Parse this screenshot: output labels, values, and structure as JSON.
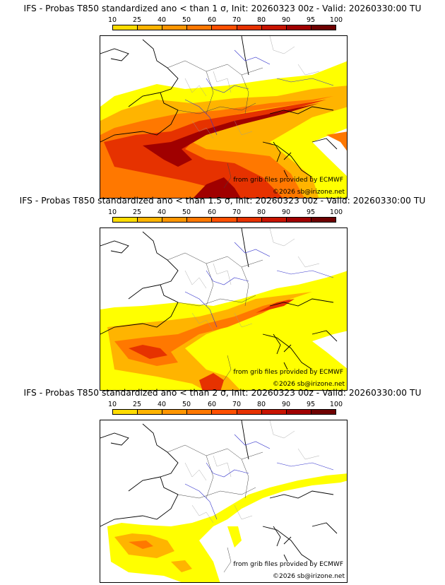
{
  "legend": {
    "ticks": [
      "10",
      "25",
      "40",
      "50",
      "60",
      "70",
      "80",
      "90",
      "95",
      "100"
    ],
    "colors": [
      "#ffff00",
      "#ffdc00",
      "#ffb400",
      "#ff9600",
      "#ff7800",
      "#ff5000",
      "#e63200",
      "#c81400",
      "#a00000",
      "#6e0000"
    ]
  },
  "credits": {
    "source": "from grib files provided by ECMWF",
    "copyright": "©2026 sb@irizone.net"
  },
  "panels": [
    {
      "title": "IFS - Probas T850  standardized ano < than 1 σ, Init: 20260323 00z - Valid: 20260330:00 TU",
      "threshold_sigma": 1
    },
    {
      "title": "IFS - Probas T850  standardized ano < than 1.5 σ, Init: 20260323 00z - Valid: 20260330:00 TU",
      "threshold_sigma": 1.5
    },
    {
      "title": "IFS - Probas T850  standardized ano < than 2 σ, Init: 20260323 00z - Valid: 20260330:00 TU",
      "threshold_sigma": 2
    }
  ]
}
